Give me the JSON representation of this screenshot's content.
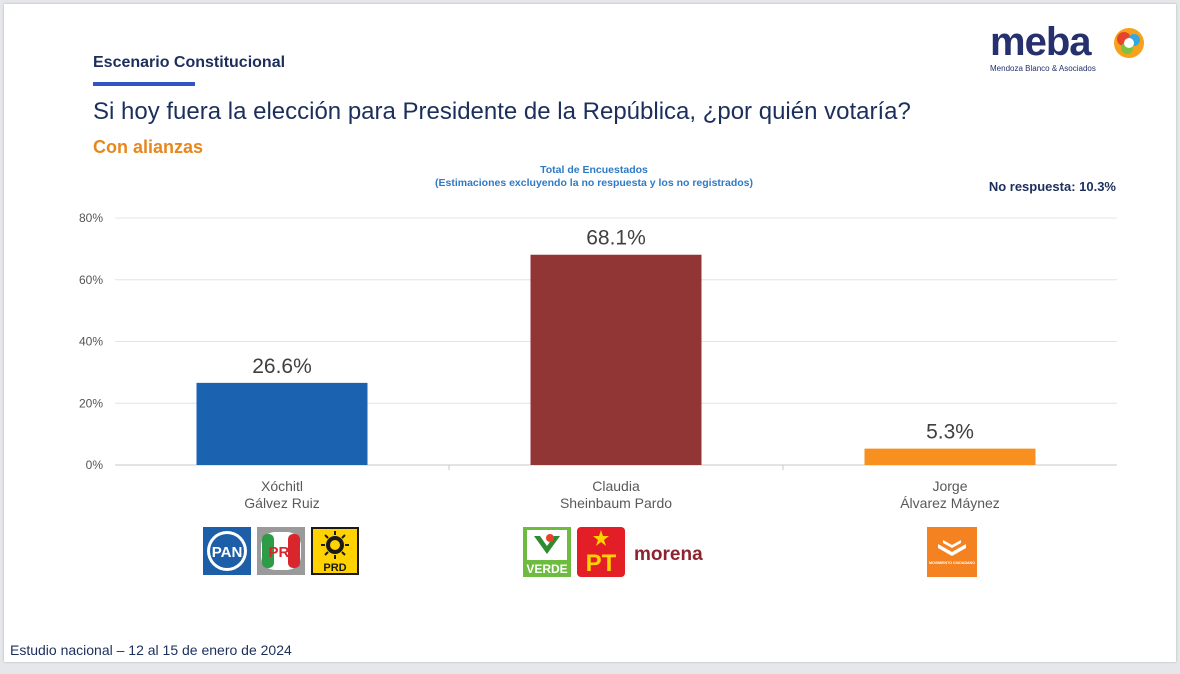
{
  "header": {
    "scenario": "Escenario Constitucional",
    "question": "Si hoy fuera la elección para Presidente de la República, ¿por quién votaría?",
    "subtitle": "Con alianzas"
  },
  "logo": {
    "word": "meba",
    "tagline": "Mendoza Blanco & Asociados"
  },
  "chart_data": {
    "type": "bar",
    "title_line1": "Total de Encuestados",
    "title_line2": "(Estimaciones excluyendo la no respuesta y los no registrados)",
    "categories": [
      [
        "Xóchitl",
        "Gálvez Ruiz"
      ],
      [
        "Claudia",
        "Sheinbaum Pardo"
      ],
      [
        "Jorge",
        "Álvarez Máynez"
      ]
    ],
    "values": [
      26.6,
      68.1,
      5.3
    ],
    "value_labels": [
      "26.6%",
      "68.1%",
      "5.3%"
    ],
    "colors": [
      "#1b63b0",
      "#923535",
      "#f7901e"
    ],
    "ylim": [
      0,
      80
    ],
    "yticks": [
      0,
      20,
      40,
      60,
      80
    ],
    "ytick_labels": [
      "0%",
      "20%",
      "40%",
      "60%",
      "80%"
    ],
    "grid": true
  },
  "no_response": "No respuesta: 10.3%",
  "parties": {
    "group1": [
      "PAN",
      "PRI",
      "PRD"
    ],
    "group2": [
      "VERDE",
      "PT",
      "morena"
    ],
    "group3": [
      "MOVIMIENTO CIUDADANO"
    ]
  },
  "footer": "Estudio nacional – 12 al 15 de enero de 2024"
}
